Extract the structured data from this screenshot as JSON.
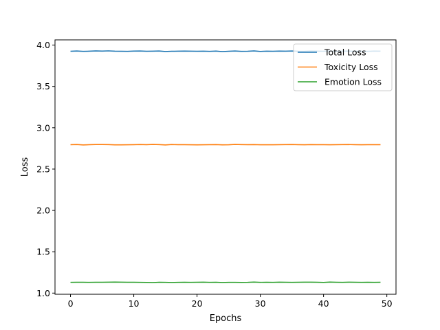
{
  "chart_data": {
    "type": "line",
    "title": "",
    "xlabel": "Epochs",
    "ylabel": "Loss",
    "xlim": [
      -2.45,
      51.45
    ],
    "ylim": [
      0.986,
      4.063
    ],
    "xticks": [
      0,
      10,
      20,
      30,
      40,
      50
    ],
    "xtick_labels": [
      "0",
      "10",
      "20",
      "30",
      "40",
      "50"
    ],
    "yticks": [
      1.0,
      1.5,
      2.0,
      2.5,
      3.0,
      3.5,
      4.0
    ],
    "ytick_labels": [
      "1.0",
      "1.5",
      "2.0",
      "2.5",
      "3.0",
      "3.5",
      "4.0"
    ],
    "grid": false,
    "legend_position": "top-right",
    "series": [
      {
        "name": "Total Loss",
        "color": "#1f77b4",
        "x": [
          0,
          1,
          2,
          3,
          4,
          5,
          6,
          7,
          8,
          9,
          10,
          11,
          12,
          13,
          14,
          15,
          16,
          17,
          18,
          19,
          20,
          21,
          22,
          23,
          24,
          25,
          26,
          27,
          28,
          29,
          30,
          31,
          32,
          33,
          34,
          35,
          36,
          37,
          38,
          39,
          40,
          41,
          42,
          43,
          44,
          45,
          46,
          47,
          48,
          49
        ],
        "values": [
          3.925,
          3.928,
          3.924,
          3.926,
          3.929,
          3.927,
          3.93,
          3.926,
          3.925,
          3.924,
          3.927,
          3.928,
          3.925,
          3.926,
          3.928,
          3.922,
          3.925,
          3.926,
          3.927,
          3.926,
          3.925,
          3.926,
          3.924,
          3.927,
          3.921,
          3.925,
          3.928,
          3.924,
          3.925,
          3.929,
          3.923,
          3.926,
          3.925,
          3.927,
          3.926,
          3.928,
          3.925,
          3.924,
          3.927,
          3.926,
          3.925,
          3.928,
          3.924,
          3.926,
          3.927,
          3.925,
          3.926,
          3.924,
          3.927,
          3.926
        ]
      },
      {
        "name": "Toxicity Loss",
        "color": "#ff7f0e",
        "x": [
          0,
          1,
          2,
          3,
          4,
          5,
          6,
          7,
          8,
          9,
          10,
          11,
          12,
          13,
          14,
          15,
          16,
          17,
          18,
          19,
          20,
          21,
          22,
          23,
          24,
          25,
          26,
          27,
          28,
          29,
          30,
          31,
          32,
          33,
          34,
          35,
          36,
          37,
          38,
          39,
          40,
          41,
          42,
          43,
          44,
          45,
          46,
          47,
          48,
          49
        ],
        "values": [
          2.795,
          2.797,
          2.792,
          2.795,
          2.797,
          2.797,
          2.796,
          2.793,
          2.793,
          2.794,
          2.795,
          2.797,
          2.795,
          2.798,
          2.796,
          2.792,
          2.797,
          2.795,
          2.795,
          2.794,
          2.793,
          2.794,
          2.795,
          2.796,
          2.793,
          2.794,
          2.798,
          2.796,
          2.795,
          2.796,
          2.794,
          2.794,
          2.794,
          2.795,
          2.796,
          2.797,
          2.795,
          2.794,
          2.796,
          2.795,
          2.795,
          2.794,
          2.795,
          2.796,
          2.797,
          2.795,
          2.794,
          2.795,
          2.795,
          2.795
        ]
      },
      {
        "name": "Emotion Loss",
        "color": "#2ca02c",
        "x": [
          0,
          1,
          2,
          3,
          4,
          5,
          6,
          7,
          8,
          9,
          10,
          11,
          12,
          13,
          14,
          15,
          16,
          17,
          18,
          19,
          20,
          21,
          22,
          23,
          24,
          25,
          26,
          27,
          28,
          29,
          30,
          31,
          32,
          33,
          34,
          35,
          36,
          37,
          38,
          39,
          40,
          41,
          42,
          43,
          44,
          45,
          46,
          47,
          48,
          49
        ],
        "values": [
          1.13,
          1.131,
          1.131,
          1.13,
          1.131,
          1.131,
          1.132,
          1.133,
          1.132,
          1.131,
          1.131,
          1.13,
          1.129,
          1.127,
          1.131,
          1.13,
          1.128,
          1.13,
          1.131,
          1.13,
          1.131,
          1.132,
          1.13,
          1.131,
          1.128,
          1.13,
          1.13,
          1.129,
          1.13,
          1.133,
          1.13,
          1.131,
          1.13,
          1.132,
          1.131,
          1.13,
          1.131,
          1.132,
          1.132,
          1.131,
          1.129,
          1.133,
          1.131,
          1.13,
          1.132,
          1.131,
          1.13,
          1.131,
          1.13,
          1.131
        ]
      }
    ]
  }
}
